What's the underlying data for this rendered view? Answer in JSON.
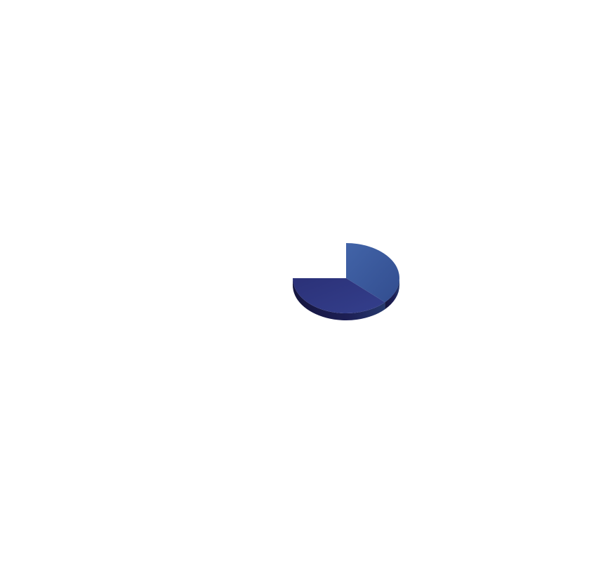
{
  "chart_data": {
    "type": "pie",
    "style": "3d",
    "start": "12 o'clock",
    "direction": "clockwise",
    "legend": "none",
    "title": "",
    "slices": [
      {
        "value": 37,
        "color": "#3a579b"
      },
      {
        "value": 38,
        "color": "#2f3882"
      },
      {
        "value": 25,
        "color": ""
      }
    ],
    "colors": {
      "background": "#ffffff",
      "side_shade": "#1c1d52",
      "side_shade_light": "#263a6e"
    }
  }
}
